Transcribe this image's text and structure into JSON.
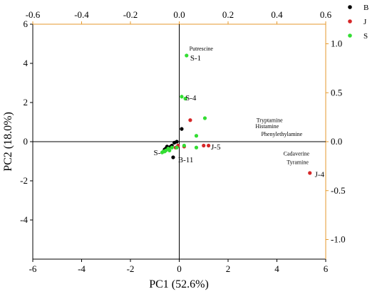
{
  "chart_data": {
    "type": "scatter",
    "title": "",
    "xlabel": "PC1 (52.6%)",
    "ylabel": "PC2 (18.0%)",
    "xlim": [
      -6,
      6
    ],
    "ylim": [
      -6,
      6
    ],
    "x_ticks": [
      "-6",
      "-4",
      "-2",
      "0",
      "2",
      "4",
      "6"
    ],
    "y_ticks": [
      "-4",
      "-2",
      "0",
      "2",
      "4",
      "6"
    ],
    "top_xlim": [
      -0.6,
      0.6
    ],
    "top_ticks": [
      "-0.6",
      "-0.4",
      "-0.2",
      "0.0",
      "0.2",
      "0.4",
      "0.6"
    ],
    "right_ylim": [
      -1.2,
      1.2
    ],
    "right_ticks": [
      "-1.0",
      "-0.5",
      "0.0",
      "0.5",
      "1.0"
    ],
    "right_axis_color": "#E69A2E",
    "grid": false,
    "crosshair_lines": true,
    "legend_position": "outside-top-right",
    "series": [
      {
        "name": "B",
        "color": "#000000",
        "points": [
          [
            0.1,
            0.65
          ],
          [
            -0.1,
            0.0
          ],
          [
            -0.2,
            -0.05
          ],
          [
            -0.3,
            -0.2
          ],
          [
            -0.35,
            -0.25
          ],
          [
            -0.45,
            -0.3
          ],
          [
            -0.5,
            -0.25
          ],
          [
            -0.55,
            -0.35
          ],
          [
            -0.6,
            -0.4
          ],
          [
            -0.25,
            -0.8
          ]
        ]
      },
      {
        "name": "J",
        "color": "#D62728",
        "points": [
          [
            0.45,
            1.1
          ],
          [
            1.0,
            -0.2
          ],
          [
            1.2,
            -0.2
          ],
          [
            0.2,
            -0.25
          ],
          [
            -0.05,
            -0.2
          ],
          [
            -0.15,
            -0.3
          ],
          [
            5.35,
            -1.6
          ]
        ]
      },
      {
        "name": "S",
        "color": "#33DD33",
        "points": [
          [
            0.3,
            4.4
          ],
          [
            0.1,
            2.3
          ],
          [
            0.25,
            2.2
          ],
          [
            1.05,
            1.2
          ],
          [
            0.7,
            0.3
          ],
          [
            0.7,
            -0.3
          ],
          [
            0.2,
            -0.2
          ],
          [
            -0.1,
            -0.3
          ],
          [
            -0.3,
            -0.3
          ],
          [
            -0.45,
            -0.35
          ],
          [
            -0.55,
            -0.45
          ],
          [
            -0.6,
            -0.5
          ],
          [
            -0.65,
            -0.5
          ],
          [
            -0.7,
            -0.55
          ],
          [
            -0.4,
            -0.45
          ]
        ]
      }
    ],
    "point_labels": [
      {
        "text": "S-1",
        "x": 0.45,
        "y": 4.3
      },
      {
        "text": "S-4",
        "x": 0.25,
        "y": 2.25
      },
      {
        "text": "J-5",
        "x": 1.3,
        "y": -0.25
      },
      {
        "text": "J-4",
        "x": 5.55,
        "y": -1.65
      },
      {
        "text": "S-",
        "x": -1.05,
        "y": -0.55
      },
      {
        "text": "B-11",
        "x": -0.05,
        "y": -0.9
      }
    ],
    "loading_annotations": [
      {
        "text": "Putrescine",
        "x": 0.9,
        "y": 4.65
      },
      {
        "text": "Tryptamine",
        "x": 3.7,
        "y": 1.0
      },
      {
        "text": "Histamine",
        "x": 3.6,
        "y": 0.7
      },
      {
        "text": "Phenylethylamine",
        "x": 4.2,
        "y": 0.3
      },
      {
        "text": "Cadaverine",
        "x": 4.8,
        "y": -0.7
      },
      {
        "text": "Tyramine",
        "x": 4.85,
        "y": -1.15
      }
    ]
  }
}
